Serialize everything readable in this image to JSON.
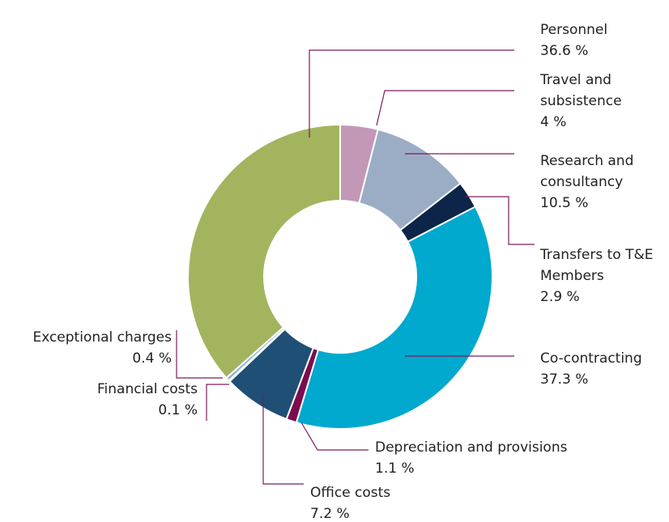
{
  "chart_data": {
    "type": "donut",
    "categories": [
      "Travel and subsistence",
      "Research and consultancy",
      "Transfers to T&E Members",
      "Co-contracting",
      "Depreciation and provisions",
      "Office costs",
      "Financial costs",
      "Exceptional charges",
      "Personnel"
    ],
    "values": [
      4,
      10.5,
      2.9,
      37.3,
      1.1,
      7.2,
      0.1,
      0.4,
      36.6
    ],
    "value_labels": [
      "4 %",
      "10.5 %",
      "2.9 %",
      "37.3 %",
      "1.1 %",
      "7.2 %",
      "0.1 %",
      "0.4 %",
      "36.6 %"
    ],
    "colors": [
      "#c397b7",
      "#9badc5",
      "#0c2548",
      "#00a9cd",
      "#7b0d4f",
      "#1f4f74",
      "#a9c7df",
      "#8db6d4",
      "#a3b45e"
    ]
  }
}
